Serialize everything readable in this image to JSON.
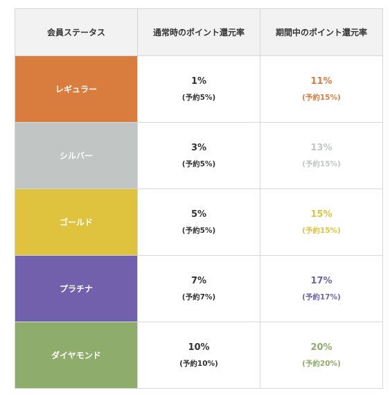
{
  "header": {
    "status": "会員ステータス",
    "normal": "通常時のポイント還元率",
    "campaign": "期間中のポイント還元率"
  },
  "rows": [
    {
      "status": "レギュラー",
      "color": "#d97d3e",
      "normal_rate": "1%",
      "normal_note": "(予約5%)",
      "campaign_rate": "11%",
      "campaign_note": "(予約15%)"
    },
    {
      "status": "シルバー",
      "color": "#c1c6c5",
      "normal_rate": "3%",
      "normal_note": "(予約5%)",
      "campaign_rate": "13%",
      "campaign_note": "(予約15%)"
    },
    {
      "status": "ゴールド",
      "color": "#dfc33e",
      "normal_rate": "5%",
      "normal_note": "(予約5%)",
      "campaign_rate": "15%",
      "campaign_note": "(予約15%)"
    },
    {
      "status": "プラチナ",
      "color": "#7160ab",
      "normal_rate": "7%",
      "normal_note": "(予約7%)",
      "campaign_rate": "17%",
      "campaign_note": "(予約17%)"
    },
    {
      "status": "ダイヤモンド",
      "color": "#8fad6a",
      "normal_rate": "10%",
      "normal_note": "(予約10%)",
      "campaign_rate": "20%",
      "campaign_note": "(予約20%)"
    }
  ]
}
